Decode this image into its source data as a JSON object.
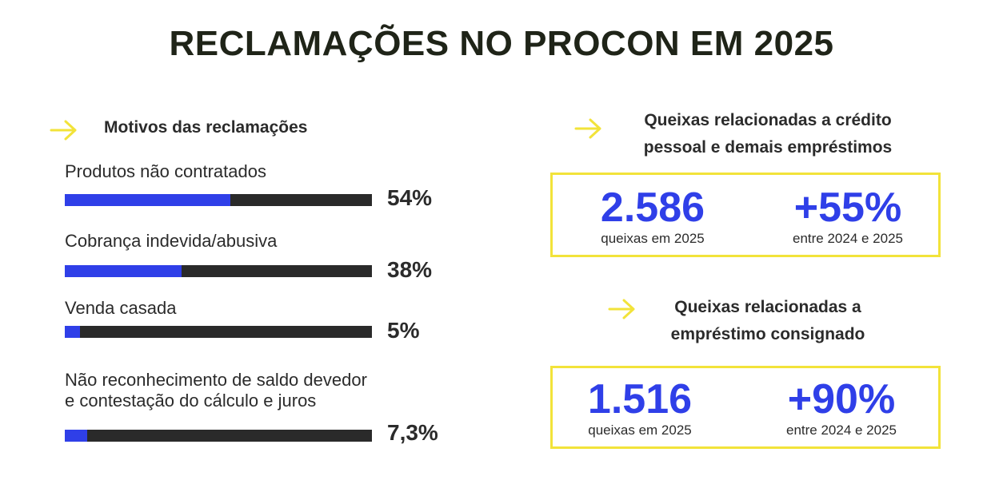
{
  "title": "RECLAMAÇÕES NO PROCON EM 2025",
  "colors": {
    "accent": "#2f3fe8",
    "track": "#2a2a2a",
    "highlight": "#f2e33a"
  },
  "left_section": {
    "heading": "Motivos das reclamações"
  },
  "chart_data": {
    "type": "bar",
    "orientation": "horizontal",
    "categories": [
      "Produtos não contratados",
      "Cobrança indevida/abusiva",
      "Venda casada",
      "Não reconhecimento de saldo devedor e contestação do cálculo e juros"
    ],
    "label_lines": [
      [
        "Produtos não contratados"
      ],
      [
        "Cobrança indevida/abusiva"
      ],
      [
        "Venda casada"
      ],
      [
        "Não reconhecimento de saldo devedor",
        "e contestação do cálculo e juros"
      ]
    ],
    "values": [
      54,
      38,
      5,
      7.3
    ],
    "value_labels": [
      "54%",
      "38%",
      "5%",
      "7,3%"
    ],
    "xlim": [
      0,
      100
    ],
    "grid": false
  },
  "credit": {
    "heading_lines": [
      "Queixas relacionadas a crédito",
      "pessoal e demais empréstimos"
    ],
    "count_value": "2.586",
    "count_caption": "queixas em 2025",
    "growth_value": "+55%",
    "growth_caption": "entre 2024 e 2025"
  },
  "consigned": {
    "heading_lines": [
      "Queixas relacionadas a",
      "empréstimo consignado"
    ],
    "count_value": "1.516",
    "count_caption": "queixas em 2025",
    "growth_value": "+90%",
    "growth_caption": "entre 2024 e 2025"
  }
}
